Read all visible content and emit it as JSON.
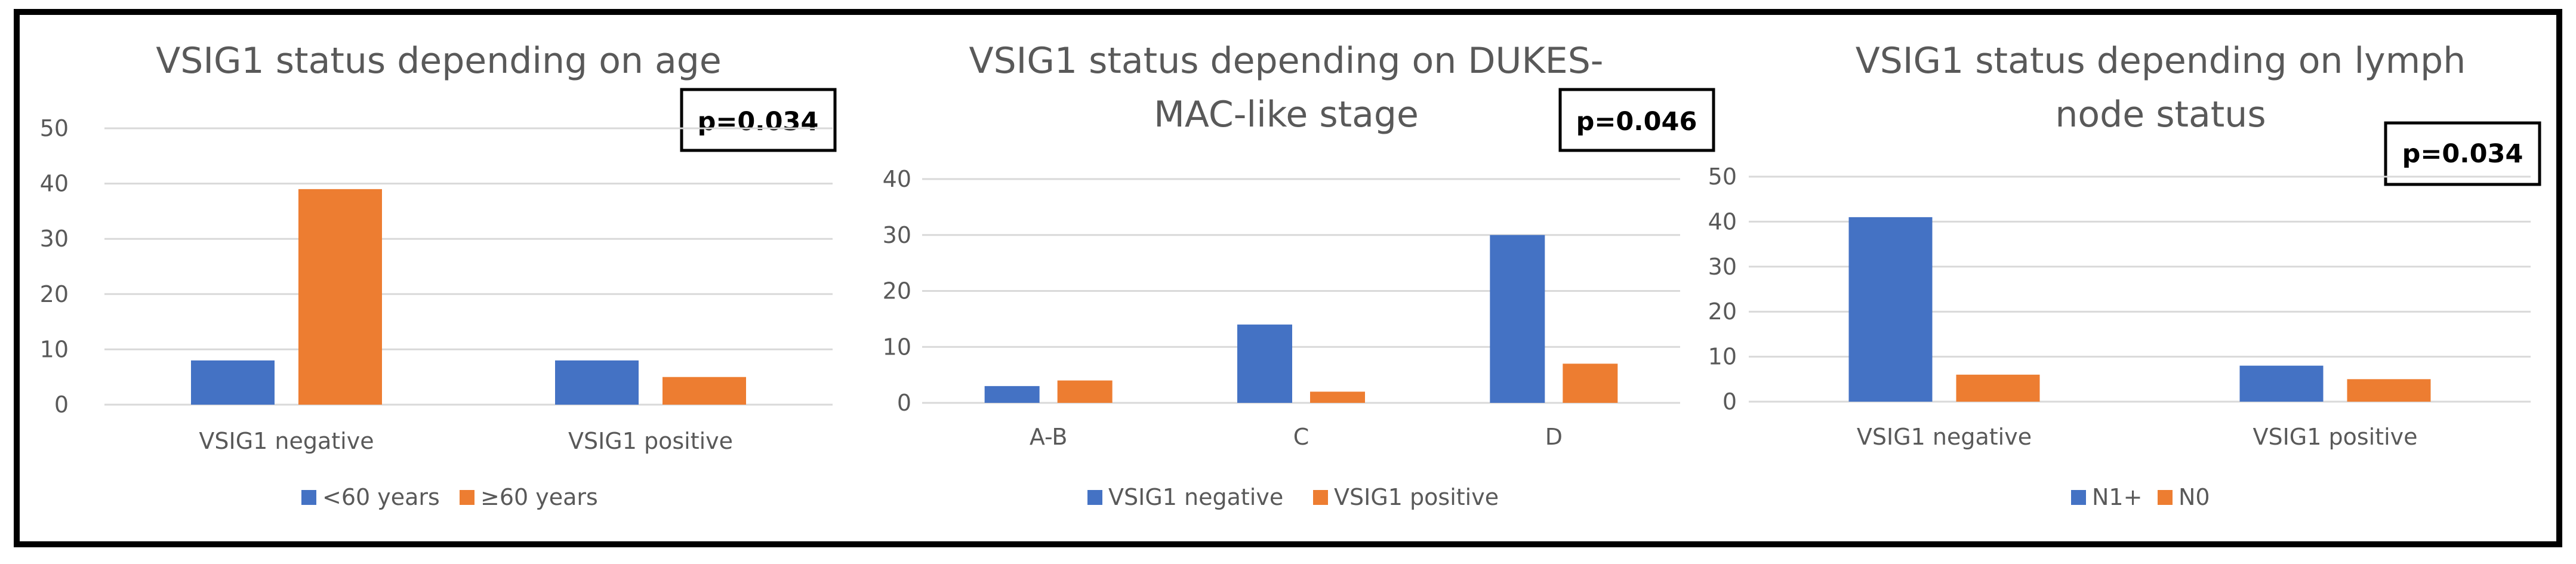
{
  "colors": {
    "series1": "#4472C4",
    "series2": "#ED7D31",
    "grid": "#D9D9D9",
    "text": "#595959",
    "title": "#595959",
    "border": "#000000"
  },
  "chart_data": [
    {
      "type": "bar",
      "title": "VSIG1 status depending on age",
      "pvalue": "p=0.034",
      "categories": [
        "VSIG1 negative",
        "VSIG1 positive"
      ],
      "series": [
        {
          "name": "<60 years",
          "values": [
            8,
            8
          ]
        },
        {
          "name": "≥60 years",
          "values": [
            39,
            5
          ]
        }
      ],
      "ylim": [
        0,
        50
      ],
      "yticks": [
        "0",
        "10",
        "20",
        "30",
        "40",
        "50"
      ],
      "xlabel": "",
      "ylabel": "",
      "grid": true,
      "legend": "bottom"
    },
    {
      "type": "bar",
      "title": "VSIG1 status depending on DUKES-MAC-like stage",
      "title_lines": [
        "VSIG1 status depending on DUKES-",
        "MAC-like stage"
      ],
      "pvalue": "p=0.046",
      "categories": [
        "A-B",
        "C",
        "D"
      ],
      "series": [
        {
          "name": "VSIG1 negative",
          "values": [
            3,
            14,
            30
          ]
        },
        {
          "name": "VSIG1 positive",
          "values": [
            4,
            2,
            7
          ]
        }
      ],
      "ylim": [
        0,
        40
      ],
      "yticks": [
        "0",
        "10",
        "20",
        "30",
        "40"
      ],
      "xlabel": "",
      "ylabel": "",
      "grid": true,
      "legend": "bottom"
    },
    {
      "type": "bar",
      "title": "VSIG1 status depending on lymph node status",
      "title_lines": [
        "VSIG1 status depending on lymph",
        "node status"
      ],
      "pvalue": "p=0.034",
      "categories": [
        "VSIG1 negative",
        "VSIG1 positive"
      ],
      "series": [
        {
          "name": "N1+",
          "values": [
            41,
            8
          ]
        },
        {
          "name": "N0",
          "values": [
            6,
            5
          ]
        }
      ],
      "ylim": [
        0,
        50
      ],
      "yticks": [
        "0",
        "10",
        "20",
        "30",
        "40",
        "50"
      ],
      "xlabel": "",
      "ylabel": "",
      "grid": true,
      "legend": "bottom"
    }
  ]
}
